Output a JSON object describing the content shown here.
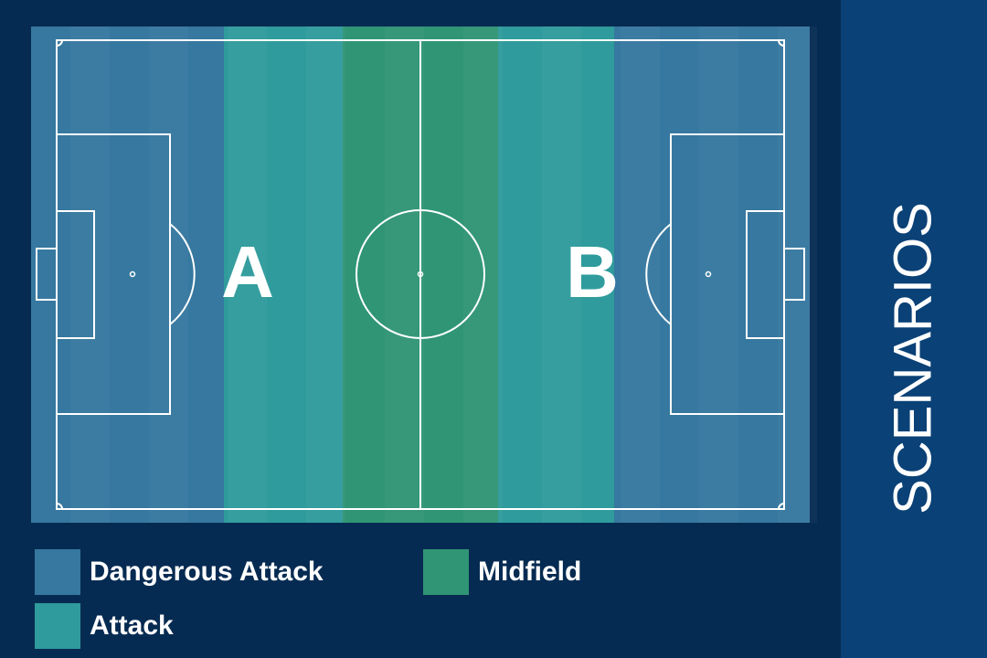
{
  "title": "SCENARIOS",
  "pitch_labels": [
    "A",
    "B"
  ],
  "legend": [
    {
      "label": "Dangerous Attack",
      "color": "#36789f"
    },
    {
      "label": "Attack",
      "color": "#2f9b9c"
    },
    {
      "label": "Midfield",
      "color": "#2f9574"
    }
  ]
}
